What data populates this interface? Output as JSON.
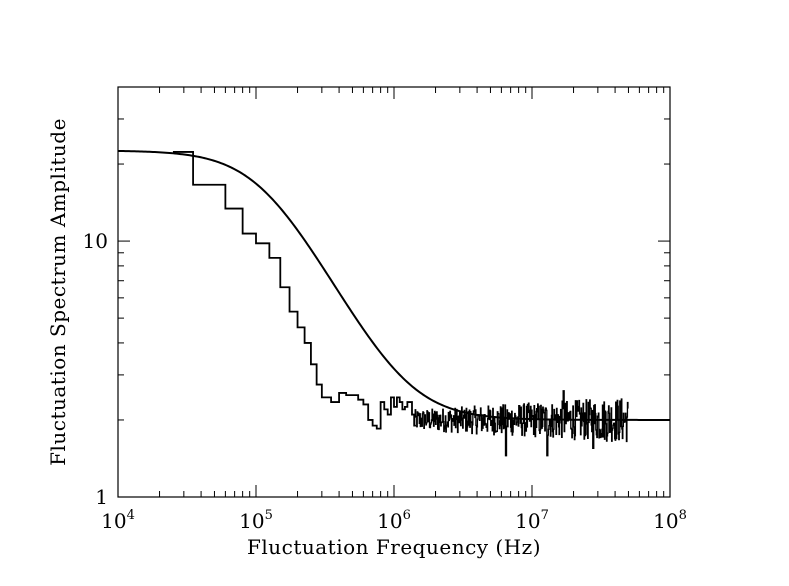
{
  "chart_data": {
    "type": "line",
    "title": "",
    "xlabel": "Fluctuation Frequency (Hz)",
    "ylabel": "Fluctuation Spectrum Amplitude",
    "xscale": "log",
    "yscale": "log",
    "xlim": [
      10000,
      100000000
    ],
    "ylim": [
      1,
      40
    ],
    "grid": false,
    "legend": "none",
    "colors": {
      "line": "#000000",
      "background": "#ffffff"
    },
    "x_tick_labels": [
      {
        "value": 10000,
        "base": "10",
        "exp": "4"
      },
      {
        "value": 100000,
        "base": "10",
        "exp": "5"
      },
      {
        "value": 1000000,
        "base": "10",
        "exp": "6"
      },
      {
        "value": 10000000,
        "base": "10",
        "exp": "7"
      },
      {
        "value": 100000000,
        "base": "10",
        "exp": "8"
      }
    ],
    "y_tick_labels": [
      {
        "value": 1,
        "text": "1"
      },
      {
        "value": 10,
        "text": "10"
      }
    ],
    "series": [
      {
        "style": "smooth-fit",
        "model": "white + lorentzian: y = sqrt(4 + 500 / (1 + (f/f0)^2))",
        "fit_params": {
          "white_level": 2.0,
          "plateau": 22.5,
          "f0": 110000
        },
        "x_range": [
          10000,
          100000000
        ]
      },
      {
        "style": "step",
        "x": [
          25000,
          35000,
          60000,
          80000,
          100000,
          125000,
          150000,
          175000,
          200000,
          225000,
          250000,
          275000,
          300000,
          350000,
          400000,
          450000,
          500000,
          550000,
          600000,
          650000,
          700000,
          750000,
          800000,
          850000,
          900000,
          950000,
          1000000,
          1050000,
          1100000,
          1150000,
          1200000,
          1250000,
          1300000,
          1350000,
          1400000
        ],
        "y": [
          22.3,
          16.6,
          13.4,
          10.7,
          9.8,
          8.6,
          6.6,
          5.3,
          4.6,
          4.0,
          3.3,
          2.75,
          2.45,
          2.35,
          2.55,
          2.5,
          2.5,
          2.4,
          2.3,
          2.0,
          1.9,
          1.85,
          2.35,
          2.2,
          2.1,
          2.45,
          2.25,
          2.45,
          2.35,
          2.2,
          2.25,
          2.35,
          2.35,
          2.1,
          1.9
        ]
      },
      {
        "style": "noisy-step",
        "description_of_trace": "high-frequency segment fluctuating around the white level",
        "x_range": [
          1400000,
          50000000
        ],
        "mean": 2.0,
        "amplitude_low_freq": 0.08,
        "amplitude_high_freq": 0.18,
        "notable_dips": [
          {
            "x": 6500000,
            "y": 1.45
          },
          {
            "x": 13000000,
            "y": 1.45
          },
          {
            "x": 28000000,
            "y": 1.55
          }
        ],
        "notable_peaks": [
          {
            "x": 17000000,
            "y": 2.6
          }
        ]
      }
    ]
  }
}
